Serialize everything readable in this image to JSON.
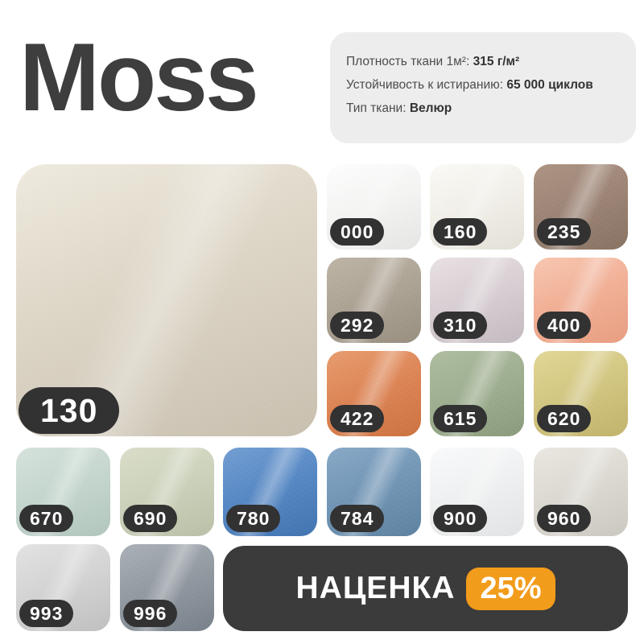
{
  "title": "Moss",
  "specs": [
    {
      "label": "Плотность ткани 1м²:",
      "value": "315 г/м²"
    },
    {
      "label": "Устойчивость к истиранию:",
      "value": "65 000 циклов"
    },
    {
      "label": "Тип ткани:",
      "value": "Велюр"
    }
  ],
  "main_swatch": {
    "code": "130",
    "colors": {
      "light": "#f0ebdf",
      "mid": "#dcd4c4",
      "dark": "#c8bfae"
    }
  },
  "swatches": [
    {
      "code": "000",
      "colors": {
        "light": "#ffffff",
        "mid": "#f5f5f4",
        "dark": "#e6e6e5"
      }
    },
    {
      "code": "160",
      "colors": {
        "light": "#fcfbf7",
        "mid": "#f2f0e9",
        "dark": "#e4e1d7"
      }
    },
    {
      "code": "235",
      "colors": {
        "light": "#ab9180",
        "mid": "#9a8172",
        "dark": "#856f5e"
      }
    },
    {
      "code": "292",
      "colors": {
        "light": "#bdb3a4",
        "mid": "#aba192",
        "dark": "#968c7c"
      }
    },
    {
      "code": "310",
      "colors": {
        "light": "#e9e1e3",
        "mid": "#d8ced3",
        "dark": "#c3b9c0"
      }
    },
    {
      "code": "400",
      "colors": {
        "light": "#f9c6af",
        "mid": "#f2ae93",
        "dark": "#e99c7e"
      }
    },
    {
      "code": "422",
      "colors": {
        "light": "#e89a6b",
        "mid": "#dd8150",
        "dark": "#cd6f3b"
      }
    },
    {
      "code": "615",
      "colors": {
        "light": "#adbc9e",
        "mid": "#9cad8d",
        "dark": "#87997a"
      }
    },
    {
      "code": "620",
      "colors": {
        "light": "#e3d794",
        "mid": "#d2c57e",
        "dark": "#c1b268"
      }
    },
    {
      "code": "670",
      "colors": {
        "light": "#d5e3db",
        "mid": "#c4d6cd",
        "dark": "#b0c5bc"
      }
    },
    {
      "code": "690",
      "colors": {
        "light": "#dadec9",
        "mid": "#cbd1b9",
        "dark": "#b9c0a6"
      }
    },
    {
      "code": "780",
      "colors": {
        "light": "#6f9cd2",
        "mid": "#5185c3",
        "dark": "#3c70b0"
      }
    },
    {
      "code": "784",
      "colors": {
        "light": "#85a7c6",
        "mid": "#6e93b4",
        "dark": "#597f9f"
      }
    },
    {
      "code": "900",
      "colors": {
        "light": "#fbfcfd",
        "mid": "#f0f1f2",
        "dark": "#e2e4e5"
      }
    },
    {
      "code": "960",
      "colors": {
        "light": "#eae8e1",
        "mid": "#dcd9d1",
        "dark": "#cbc8bf"
      }
    },
    {
      "code": "993",
      "colors": {
        "light": "#e3e3e3",
        "mid": "#d3d3d3",
        "dark": "#bfbfbf"
      }
    },
    {
      "code": "996",
      "colors": {
        "light": "#a8afb6",
        "mid": "#8f979f",
        "dark": "#747d86"
      }
    }
  ],
  "promo": {
    "label": "НАЦЕНКА",
    "value": "25%",
    "accent": "#f29c1b",
    "bg": "#3b3b3b"
  }
}
